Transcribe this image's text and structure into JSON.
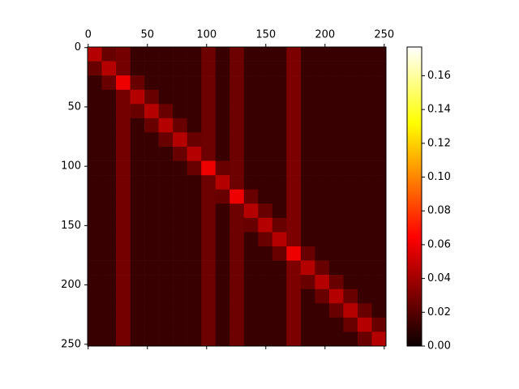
{
  "chart_data": {
    "type": "heatmap",
    "colormap": "hot",
    "xlim": [
      -0.5,
      251.5
    ],
    "ylim": [
      251.5,
      -0.5
    ],
    "xticks": [
      0,
      50,
      100,
      150,
      200,
      250
    ],
    "yticks": [
      0,
      50,
      100,
      150,
      200,
      250
    ],
    "xbins": [
      -0.5,
      11.5,
      23.5,
      35.5,
      47.5,
      59.5,
      71.5,
      83.5,
      95.5,
      107.5,
      119.5,
      131.5,
      143.5,
      155.5,
      167.5,
      179.5,
      191.5,
      203.5,
      215.5,
      227.5,
      239.5,
      251.5
    ],
    "ybins": [
      -0.5,
      11.5,
      23.5,
      35.5,
      47.5,
      59.5,
      71.5,
      83.5,
      95.5,
      107.5,
      119.5,
      131.5,
      143.5,
      155.5,
      167.5,
      179.5,
      191.5,
      203.5,
      215.5,
      227.5,
      239.5,
      251.5
    ],
    "clim": [
      0,
      0.177
    ],
    "cticks": [
      {
        "value": 0,
        "label": "0.00"
      },
      {
        "value": 0.02,
        "label": "0.02"
      },
      {
        "value": 0.04,
        "label": "0.04"
      },
      {
        "value": 0.06,
        "label": "0.06"
      },
      {
        "value": 0.08,
        "label": "0.08"
      },
      {
        "value": 0.1,
        "label": "0.10"
      },
      {
        "value": 0.12,
        "label": "0.12"
      },
      {
        "value": 0.14,
        "label": "0.14"
      },
      {
        "value": 0.16,
        "label": "0.16"
      }
    ],
    "values": [
      [
        0.045,
        0.025,
        0.028,
        0.012,
        0.012,
        0.012,
        0.012,
        0.012,
        0.026,
        0.012,
        0.026,
        0.012,
        0.012,
        0.012,
        0.03,
        0.012,
        0.012,
        0.012,
        0.012,
        0.012,
        0.012
      ],
      [
        0.025,
        0.045,
        0.028,
        0.012,
        0.012,
        0.012,
        0.012,
        0.012,
        0.026,
        0.012,
        0.026,
        0.012,
        0.012,
        0.012,
        0.03,
        0.012,
        0.012,
        0.012,
        0.012,
        0.012,
        0.012
      ],
      [
        0.012,
        0.025,
        0.06,
        0.025,
        0.012,
        0.012,
        0.012,
        0.012,
        0.026,
        0.012,
        0.026,
        0.012,
        0.012,
        0.012,
        0.03,
        0.012,
        0.012,
        0.012,
        0.012,
        0.012,
        0.012
      ],
      [
        0.012,
        0.012,
        0.028,
        0.045,
        0.025,
        0.012,
        0.012,
        0.012,
        0.026,
        0.012,
        0.026,
        0.012,
        0.012,
        0.012,
        0.03,
        0.012,
        0.012,
        0.012,
        0.012,
        0.012,
        0.012
      ],
      [
        0.012,
        0.012,
        0.028,
        0.025,
        0.045,
        0.025,
        0.012,
        0.012,
        0.026,
        0.012,
        0.026,
        0.012,
        0.012,
        0.012,
        0.03,
        0.012,
        0.012,
        0.012,
        0.012,
        0.012,
        0.012
      ],
      [
        0.012,
        0.012,
        0.028,
        0.012,
        0.025,
        0.045,
        0.025,
        0.012,
        0.026,
        0.012,
        0.026,
        0.012,
        0.012,
        0.012,
        0.03,
        0.012,
        0.012,
        0.012,
        0.012,
        0.012,
        0.012
      ],
      [
        0.012,
        0.012,
        0.028,
        0.012,
        0.012,
        0.025,
        0.045,
        0.025,
        0.026,
        0.012,
        0.026,
        0.012,
        0.012,
        0.012,
        0.03,
        0.012,
        0.012,
        0.012,
        0.012,
        0.012,
        0.012
      ],
      [
        0.012,
        0.012,
        0.028,
        0.012,
        0.012,
        0.012,
        0.025,
        0.045,
        0.026,
        0.012,
        0.026,
        0.012,
        0.012,
        0.012,
        0.03,
        0.012,
        0.012,
        0.012,
        0.012,
        0.012,
        0.012
      ],
      [
        0.012,
        0.012,
        0.028,
        0.012,
        0.012,
        0.012,
        0.012,
        0.025,
        0.06,
        0.025,
        0.026,
        0.012,
        0.012,
        0.012,
        0.03,
        0.012,
        0.012,
        0.012,
        0.012,
        0.012,
        0.012
      ],
      [
        0.012,
        0.012,
        0.028,
        0.012,
        0.012,
        0.012,
        0.012,
        0.012,
        0.026,
        0.045,
        0.026,
        0.012,
        0.012,
        0.012,
        0.03,
        0.012,
        0.012,
        0.012,
        0.012,
        0.012,
        0.012
      ],
      [
        0.012,
        0.012,
        0.028,
        0.012,
        0.012,
        0.012,
        0.012,
        0.012,
        0.026,
        0.025,
        0.06,
        0.025,
        0.012,
        0.012,
        0.03,
        0.012,
        0.012,
        0.012,
        0.012,
        0.012,
        0.012
      ],
      [
        0.012,
        0.012,
        0.028,
        0.012,
        0.012,
        0.012,
        0.012,
        0.012,
        0.026,
        0.012,
        0.026,
        0.045,
        0.025,
        0.012,
        0.03,
        0.012,
        0.012,
        0.012,
        0.012,
        0.012,
        0.012
      ],
      [
        0.012,
        0.012,
        0.028,
        0.012,
        0.012,
        0.012,
        0.012,
        0.012,
        0.026,
        0.012,
        0.026,
        0.025,
        0.045,
        0.025,
        0.03,
        0.012,
        0.012,
        0.012,
        0.012,
        0.012,
        0.012
      ],
      [
        0.012,
        0.012,
        0.028,
        0.012,
        0.012,
        0.012,
        0.012,
        0.012,
        0.026,
        0.012,
        0.026,
        0.012,
        0.025,
        0.045,
        0.03,
        0.012,
        0.012,
        0.012,
        0.012,
        0.012,
        0.012
      ],
      [
        0.012,
        0.012,
        0.028,
        0.012,
        0.012,
        0.012,
        0.012,
        0.012,
        0.026,
        0.012,
        0.026,
        0.012,
        0.012,
        0.025,
        0.06,
        0.025,
        0.012,
        0.012,
        0.012,
        0.012,
        0.012
      ],
      [
        0.012,
        0.012,
        0.028,
        0.012,
        0.012,
        0.012,
        0.012,
        0.012,
        0.026,
        0.012,
        0.026,
        0.012,
        0.012,
        0.012,
        0.03,
        0.045,
        0.025,
        0.012,
        0.012,
        0.012,
        0.012
      ],
      [
        0.012,
        0.012,
        0.028,
        0.012,
        0.012,
        0.012,
        0.012,
        0.012,
        0.026,
        0.012,
        0.026,
        0.012,
        0.012,
        0.012,
        0.03,
        0.025,
        0.045,
        0.025,
        0.012,
        0.012,
        0.012
      ],
      [
        0.012,
        0.012,
        0.028,
        0.012,
        0.012,
        0.012,
        0.012,
        0.012,
        0.026,
        0.012,
        0.026,
        0.012,
        0.012,
        0.012,
        0.03,
        0.012,
        0.025,
        0.045,
        0.025,
        0.012,
        0.012
      ],
      [
        0.012,
        0.012,
        0.028,
        0.012,
        0.012,
        0.012,
        0.012,
        0.012,
        0.026,
        0.012,
        0.026,
        0.012,
        0.012,
        0.012,
        0.03,
        0.012,
        0.012,
        0.025,
        0.045,
        0.025,
        0.012
      ],
      [
        0.012,
        0.012,
        0.028,
        0.012,
        0.012,
        0.012,
        0.012,
        0.012,
        0.026,
        0.012,
        0.026,
        0.012,
        0.012,
        0.012,
        0.03,
        0.012,
        0.012,
        0.012,
        0.025,
        0.045,
        0.025
      ],
      [
        0.012,
        0.012,
        0.028,
        0.012,
        0.012,
        0.012,
        0.012,
        0.012,
        0.026,
        0.012,
        0.026,
        0.012,
        0.012,
        0.012,
        0.03,
        0.012,
        0.012,
        0.012,
        0.012,
        0.025,
        0.045
      ]
    ]
  }
}
